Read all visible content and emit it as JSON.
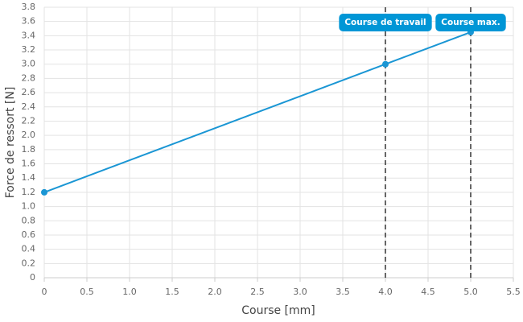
{
  "chart_data": {
    "type": "line",
    "x_label": "Course [mm]",
    "y_label": "Force de ressort [N]",
    "x": [
      0,
      4,
      5
    ],
    "series": [
      {
        "color": "#1a96d4",
        "values": [
          1.2,
          3.0,
          3.45
        ]
      }
    ],
    "xlim": [
      0,
      5.5
    ],
    "xticks": [
      0,
      0.5,
      {
        "value": 1,
        "label": "1.0"
      },
      1.5,
      {
        "value": 2,
        "label": "2.0"
      },
      2.5,
      {
        "value": 3,
        "label": "3.0"
      },
      3.5,
      {
        "value": 4,
        "label": "4.0"
      },
      4.5,
      {
        "value": 5,
        "label": "5.0"
      },
      5.5
    ],
    "ylim": [
      0,
      3.8
    ],
    "yticks": [
      0,
      0.2,
      0.4,
      0.6,
      0.8,
      {
        "value": 1,
        "label": "1.0"
      },
      1.2,
      1.4,
      1.6,
      1.8,
      {
        "value": 2,
        "label": "2.0"
      },
      2.2,
      2.4,
      2.6,
      2.8,
      {
        "value": 3,
        "label": "3.0"
      },
      3.2,
      3.4,
      3.6,
      3.8
    ],
    "grid": true,
    "annotations": [
      {
        "x": 4,
        "label": "Course de travail"
      },
      {
        "x": 5,
        "label": "Course max."
      }
    ],
    "annotation_color": "#0096d6"
  }
}
